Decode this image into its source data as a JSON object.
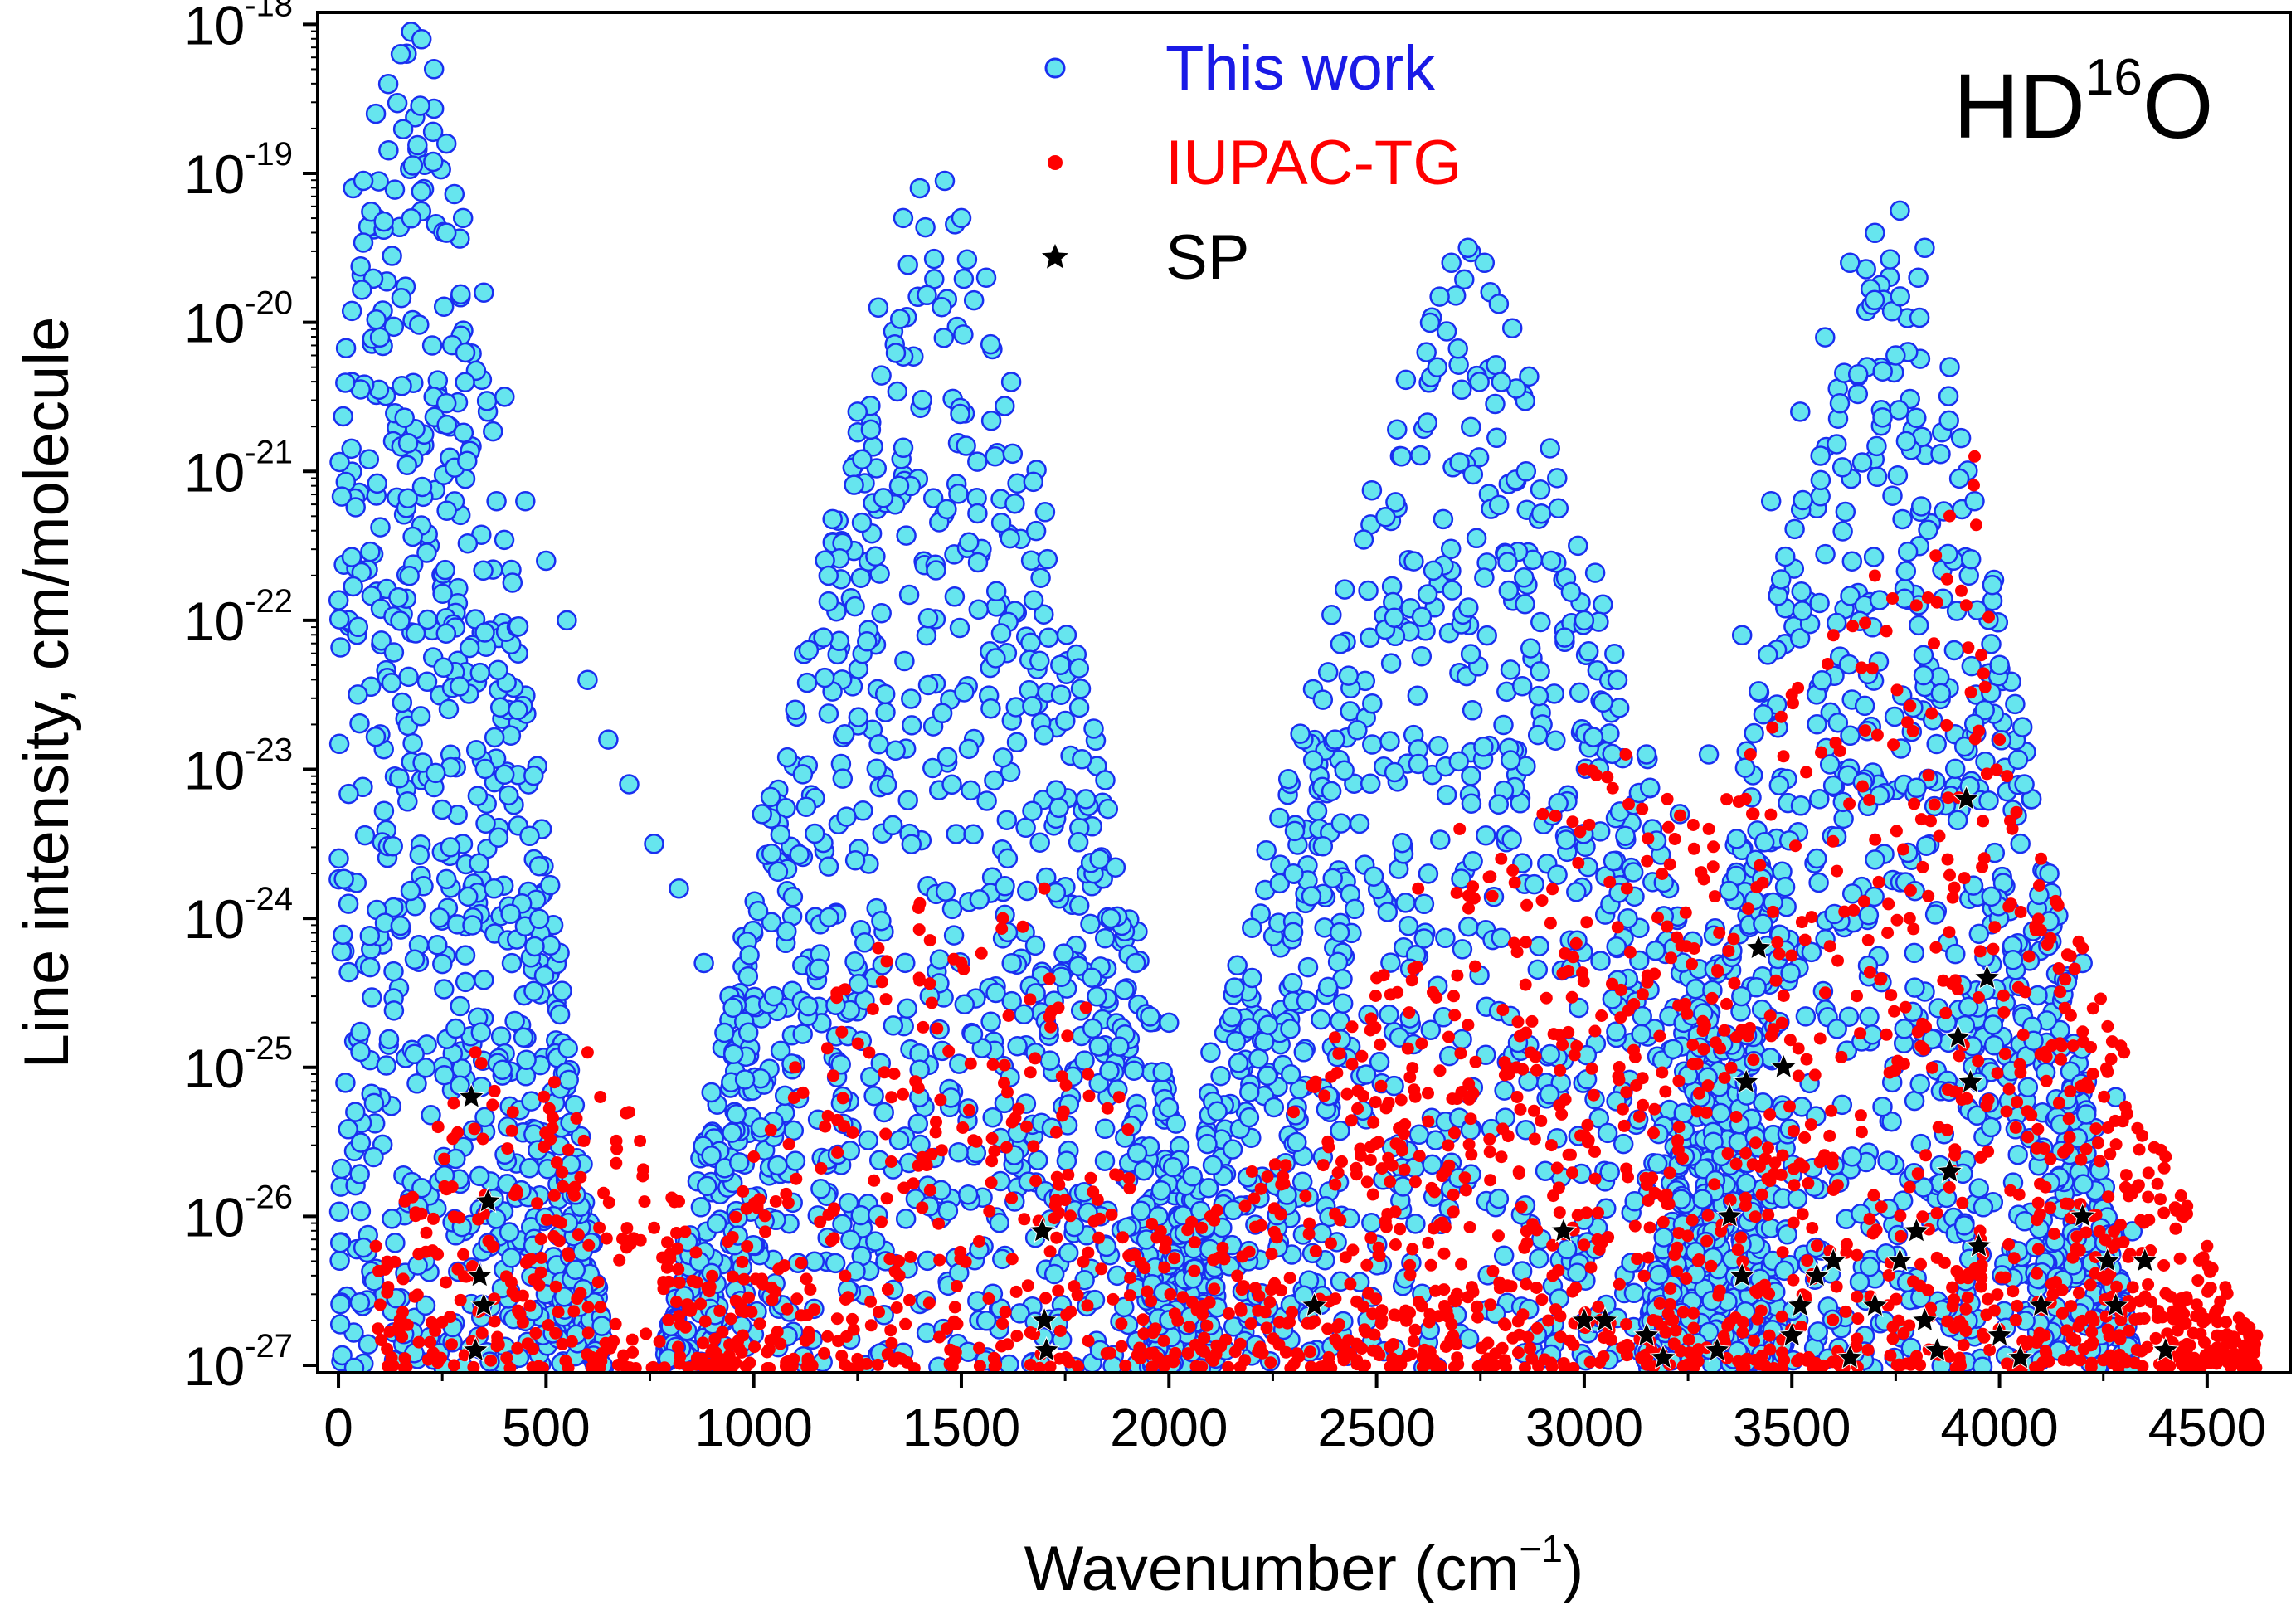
{
  "chart_data": {
    "type": "scatter",
    "title": "",
    "annotation": {
      "molecule": "HD",
      "isotope": "16",
      "atom": "O"
    },
    "xlabel": {
      "main": "Wavenumber (cm",
      "sup": "−1",
      "close": ")"
    },
    "ylabel": "Line intensity, cm/molecule",
    "xlim": [
      -50,
      4700
    ],
    "ylim_log10": [
      -27.05,
      -17.92
    ],
    "xscale": "linear",
    "yscale": "log",
    "xticks": [
      0,
      500,
      1000,
      1500,
      2000,
      2500,
      3000,
      3500,
      4000,
      4500
    ],
    "xtick_labels": [
      "0",
      "500",
      "1000",
      "1500",
      "2000",
      "2500",
      "3000",
      "3500",
      "4000",
      "4500"
    ],
    "yticks_exponents": [
      -18,
      -19,
      -20,
      -21,
      -22,
      -23,
      -24,
      -25,
      -26,
      -27
    ],
    "ytick_base": "10",
    "ytick_exponent_labels": [
      "-18",
      "-19",
      "-20",
      "-21",
      "-22",
      "-23",
      "-24",
      "-25",
      "-26",
      "-27"
    ],
    "legend_position": "top-center",
    "series": [
      {
        "name": "This work",
        "marker": "circle",
        "fill": "#66e5ee",
        "edge": "#1a2ff0",
        "label_color": "#1a1ae6",
        "description_bands": [
          {
            "center": 180,
            "peak_log10_intensity": -18.0,
            "x_range": [
              0,
              900
            ]
          },
          {
            "center": 1450,
            "peak_log10_intensity": -19.1,
            "x_range": [
              850,
              2150
            ]
          },
          {
            "center": 2720,
            "peak_log10_intensity": -19.5,
            "x_range": [
              2100,
              3600
            ]
          },
          {
            "center": 3730,
            "peak_log10_intensity": -19.2,
            "x_range": [
              3200,
              4350
            ]
          }
        ],
        "points": [
          [
            35,
            -19.1
          ],
          [
            60,
            -19.05
          ],
          [
            90,
            -18.6
          ],
          [
            120,
            -18.4
          ],
          [
            150,
            -18.2
          ],
          [
            175,
            -18.05
          ],
          [
            200,
            -18.1
          ],
          [
            230,
            -18.3
          ],
          [
            260,
            -18.8
          ],
          [
            300,
            -19.3
          ],
          [
            350,
            -19.8
          ],
          [
            400,
            -20.5
          ],
          [
            450,
            -21.2
          ],
          [
            500,
            -21.6
          ],
          [
            550,
            -22.0
          ],
          [
            600,
            -22.4
          ],
          [
            650,
            -22.8
          ],
          [
            700,
            -23.1
          ],
          [
            760,
            -23.5
          ],
          [
            820,
            -23.8
          ],
          [
            880,
            -24.3
          ],
          [
            950,
            -24.6
          ],
          [
            1020,
            -23.3
          ],
          [
            1100,
            -22.6
          ],
          [
            1180,
            -21.7
          ],
          [
            1250,
            -20.6
          ],
          [
            1300,
            -19.9
          ],
          [
            1360,
            -19.3
          ],
          [
            1400,
            -19.1
          ],
          [
            1460,
            -19.05
          ],
          [
            1500,
            -19.3
          ],
          [
            1560,
            -19.7
          ],
          [
            1620,
            -20.4
          ],
          [
            1680,
            -21.4
          ],
          [
            1740,
            -22.5
          ],
          [
            1800,
            -23.2
          ],
          [
            1860,
            -24.0
          ],
          [
            1920,
            -24.3
          ],
          [
            2000,
            -24.7
          ],
          [
            2100,
            -24.9
          ],
          [
            2200,
            -24.4
          ],
          [
            2300,
            -23.7
          ],
          [
            2400,
            -22.8
          ],
          [
            2480,
            -21.8
          ],
          [
            2560,
            -20.9
          ],
          [
            2620,
            -20.2
          ],
          [
            2680,
            -19.6
          ],
          [
            2720,
            -19.5
          ],
          [
            2760,
            -19.6
          ],
          [
            2800,
            -20.4
          ],
          [
            2860,
            -21.0
          ],
          [
            2920,
            -21.6
          ],
          [
            3000,
            -22.0
          ],
          [
            3080,
            -22.4
          ],
          [
            3150,
            -22.9
          ],
          [
            3230,
            -23.3
          ],
          [
            3300,
            -22.9
          ],
          [
            3380,
            -22.1
          ],
          [
            3450,
            -21.2
          ],
          [
            3520,
            -20.6
          ],
          [
            3580,
            -20.1
          ],
          [
            3640,
            -19.6
          ],
          [
            3700,
            -19.4
          ],
          [
            3760,
            -19.25
          ],
          [
            3820,
            -19.5
          ],
          [
            3880,
            -20.3
          ],
          [
            3940,
            -21.2
          ],
          [
            4000,
            -22.3
          ],
          [
            4060,
            -23.1
          ],
          [
            4120,
            -23.7
          ],
          [
            4200,
            -24.3
          ],
          [
            4280,
            -25.2
          ],
          [
            4320,
            -26.1
          ]
        ]
      },
      {
        "name": "IUPAC-TG",
        "marker": "dot",
        "color": "#ff0000",
        "label_color": "#ff0000",
        "description_upper_edge": "sparse at low wavenumber, dense above 2500 cm-1, reaching about 1e-21 near 3900 cm-1",
        "points": [
          [
            90,
            -26.2
          ],
          [
            160,
            -25.9
          ],
          [
            240,
            -25.4
          ],
          [
            330,
            -24.9
          ],
          [
            420,
            -25.3
          ],
          [
            520,
            -25.1
          ],
          [
            600,
            -24.9
          ],
          [
            700,
            -25.3
          ],
          [
            820,
            -25.9
          ],
          [
            900,
            -26.4
          ],
          [
            1000,
            -25.6
          ],
          [
            1100,
            -25.0
          ],
          [
            1200,
            -24.5
          ],
          [
            1300,
            -24.2
          ],
          [
            1400,
            -23.9
          ],
          [
            1500,
            -24.3
          ],
          [
            1600,
            -24.0
          ],
          [
            1700,
            -23.8
          ],
          [
            1800,
            -24.6
          ],
          [
            1880,
            -25.2
          ],
          [
            1980,
            -26.1
          ],
          [
            2100,
            -26.0
          ],
          [
            2200,
            -25.7
          ],
          [
            2300,
            -25.3
          ],
          [
            2400,
            -24.8
          ],
          [
            2500,
            -24.4
          ],
          [
            2600,
            -23.8
          ],
          [
            2700,
            -23.4
          ],
          [
            2800,
            -23.6
          ],
          [
            2900,
            -23.3
          ],
          [
            3000,
            -23.0
          ],
          [
            3100,
            -22.9
          ],
          [
            3200,
            -23.2
          ],
          [
            3300,
            -23.4
          ],
          [
            3400,
            -22.9
          ],
          [
            3500,
            -22.5
          ],
          [
            3600,
            -22.1
          ],
          [
            3700,
            -21.7
          ],
          [
            3800,
            -21.9
          ],
          [
            3880,
            -21.3
          ],
          [
            3940,
            -20.9
          ],
          [
            4000,
            -22.8
          ],
          [
            4100,
            -23.6
          ],
          [
            4200,
            -24.2
          ],
          [
            4300,
            -24.9
          ],
          [
            4400,
            -25.6
          ],
          [
            4500,
            -26.2
          ],
          [
            4620,
            -26.8
          ]
        ]
      },
      {
        "name": "SP",
        "marker": "star",
        "color": "#000000",
        "label_color": "#000000",
        "points": [
          [
            320,
            -25.2
          ],
          [
            330,
            -26.9
          ],
          [
            340,
            -26.4
          ],
          [
            350,
            -26.6
          ],
          [
            360,
            -25.9
          ],
          [
            1695,
            -26.1
          ],
          [
            1700,
            -26.7
          ],
          [
            1705,
            -26.9
          ],
          [
            2350,
            -26.6
          ],
          [
            2950,
            -26.1
          ],
          [
            3000,
            -26.7
          ],
          [
            3050,
            -26.7
          ],
          [
            3150,
            -26.8
          ],
          [
            3190,
            -26.95
          ],
          [
            3320,
            -26.9
          ],
          [
            3350,
            -26.0
          ],
          [
            3380,
            -26.4
          ],
          [
            3390,
            -25.1
          ],
          [
            3420,
            -24.2
          ],
          [
            3480,
            -25.0
          ],
          [
            3500,
            -26.8
          ],
          [
            3520,
            -26.6
          ],
          [
            3560,
            -26.4
          ],
          [
            3600,
            -26.3
          ],
          [
            3640,
            -26.95
          ],
          [
            3700,
            -26.6
          ],
          [
            3760,
            -26.3
          ],
          [
            3800,
            -26.1
          ],
          [
            3820,
            -26.7
          ],
          [
            3850,
            -26.9
          ],
          [
            3880,
            -25.7
          ],
          [
            3900,
            -24.8
          ],
          [
            3920,
            -23.2
          ],
          [
            3930,
            -25.1
          ],
          [
            3950,
            -26.2
          ],
          [
            3970,
            -24.4
          ],
          [
            4000,
            -26.8
          ],
          [
            4050,
            -26.95
          ],
          [
            4100,
            -26.6
          ],
          [
            4200,
            -26.0
          ],
          [
            4260,
            -26.3
          ],
          [
            4280,
            -26.6
          ],
          [
            4350,
            -26.3
          ],
          [
            4400,
            -26.9
          ]
        ]
      }
    ]
  }
}
